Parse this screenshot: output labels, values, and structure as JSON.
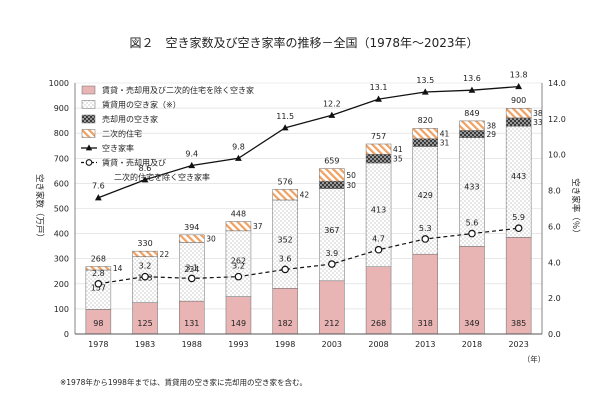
{
  "chart_data": {
    "type": "bar",
    "title": "図２　空き家数及び空き家率の推移－全国（1978年～2023年）",
    "categories": [
      "1978",
      "1983",
      "1988",
      "1993",
      "1998",
      "2003",
      "2008",
      "2013",
      "2018",
      "2023"
    ],
    "x_unit": "（年）",
    "y_left_label": "空き家数（万戸）",
    "y_right_label": "空き家率（％）",
    "y_left_ticks": [
      "0",
      "100",
      "200",
      "300",
      "400",
      "500",
      "600",
      "700",
      "800",
      "900",
      "1000"
    ],
    "y_right_ticks": [
      "0.0",
      "2.0",
      "4.0",
      "6.0",
      "8.0",
      "10.0",
      "12.0",
      "14.0"
    ],
    "ylim_left": [
      0,
      1000
    ],
    "ylim_right": [
      0,
      14
    ],
    "series": [
      {
        "name": "賃貸・売却用及び二次的住宅を除く空き家",
        "stack": "bar",
        "color": "#e8b4b4",
        "values": [
          98,
          125,
          131,
          149,
          182,
          212,
          268,
          318,
          349,
          385
        ],
        "labels": [
          "98",
          "125",
          "131",
          "149",
          "182",
          "212",
          "268",
          "318",
          "349",
          "385"
        ]
      },
      {
        "name": "賃貸用の空き家（※）",
        "stack": "bar",
        "color": "#ffffff",
        "values": [
          157,
          183,
          234,
          262,
          352,
          367,
          413,
          429,
          433,
          443
        ],
        "labels": [
          "157",
          "183",
          "234",
          "262",
          "352",
          "367",
          "413",
          "429",
          "433",
          "443"
        ]
      },
      {
        "name": "売却用の空き家",
        "stack": "bar",
        "color": "#555555",
        "values": [
          0,
          0,
          0,
          0,
          0,
          30,
          35,
          31,
          29,
          33
        ],
        "labels": [
          "",
          "",
          "",
          "",
          "",
          "30",
          "35",
          "31",
          "29",
          "33"
        ]
      },
      {
        "name": "二次的住宅",
        "stack": "bar",
        "color": "#f2a96b",
        "values": [
          14,
          22,
          30,
          37,
          42,
          50,
          41,
          41,
          38,
          38
        ],
        "labels": [
          "14",
          "22",
          "30",
          "37",
          "42",
          "50",
          "41",
          "41",
          "38",
          "38"
        ]
      },
      {
        "name": "空き家率",
        "type": "line",
        "axis": "right",
        "color": "#111111",
        "values": [
          7.6,
          8.6,
          9.4,
          9.8,
          11.5,
          12.2,
          13.1,
          13.5,
          13.6,
          13.8
        ],
        "labels": [
          "7.6",
          "8.6",
          "9.4",
          "9.8",
          "11.5",
          "12.2",
          "13.1",
          "13.5",
          "13.6",
          "13.8"
        ]
      },
      {
        "name": "賃貸・売却用及び二次的住宅を除く空き家率",
        "type": "line",
        "axis": "right",
        "dashed": true,
        "color": "#111111",
        "values": [
          2.8,
          3.2,
          3.1,
          3.2,
          3.6,
          3.9,
          4.7,
          5.3,
          5.6,
          5.9
        ],
        "labels": [
          "2.8",
          "3.2",
          "3.1",
          "3.2",
          "3.6",
          "3.9",
          "4.7",
          "5.3",
          "5.6",
          "5.9"
        ]
      }
    ],
    "totals": [
      "268",
      "330",
      "394",
      "448",
      "576",
      "659",
      "757",
      "820",
      "849",
      "900"
    ],
    "totals_values": [
      268,
      330,
      394,
      448,
      576,
      659,
      757,
      820,
      849,
      900
    ],
    "legend": {
      "position": "top-left",
      "items": [
        "賃貸・売却用及び二次的住宅を除く空き家",
        "賃貸用の空き家（※）",
        "売却用の空き家",
        "二次的住宅",
        "空き家率",
        "賃貸・売却用及び",
        "二次的住宅を除く空き家率"
      ]
    },
    "footnote": "※1978年から1998年までは、賃貸用の空き家に売却用の空き家を含む。"
  }
}
